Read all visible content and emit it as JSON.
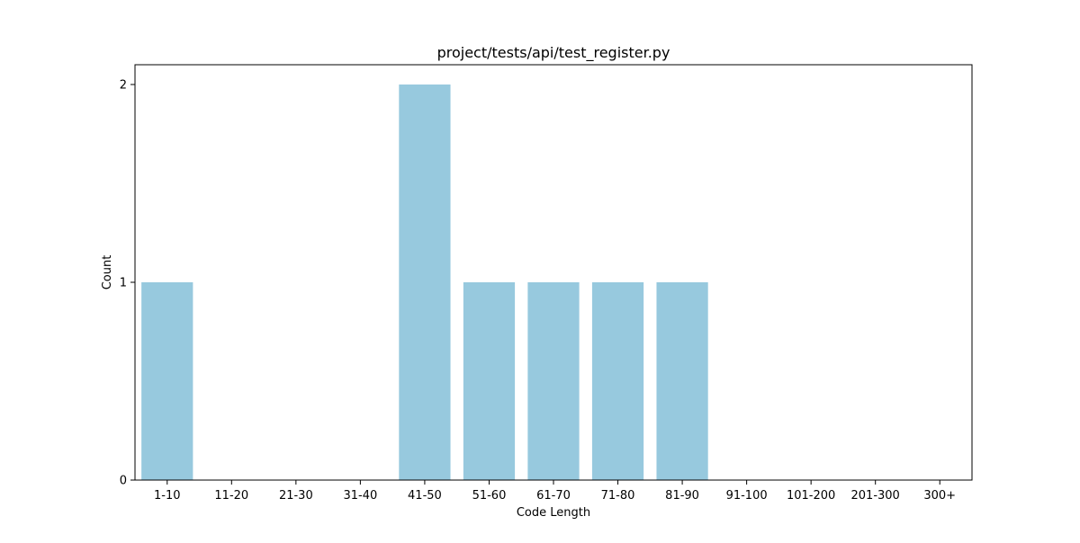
{
  "chart_data": {
    "type": "bar",
    "title": "project/tests/api/test_register.py",
    "xlabel": "Code Length",
    "ylabel": "Count",
    "categories": [
      "1-10",
      "11-20",
      "21-30",
      "31-40",
      "41-50",
      "51-60",
      "61-70",
      "71-80",
      "81-90",
      "91-100",
      "101-200",
      "201-300",
      "300+"
    ],
    "values": [
      1,
      0,
      0,
      0,
      2,
      1,
      1,
      1,
      1,
      0,
      0,
      0,
      0
    ],
    "ylim": [
      0,
      2.1
    ],
    "yticks": [
      0,
      1,
      2
    ],
    "grid": false,
    "legend": "none",
    "bar_color": "#97c9de"
  }
}
